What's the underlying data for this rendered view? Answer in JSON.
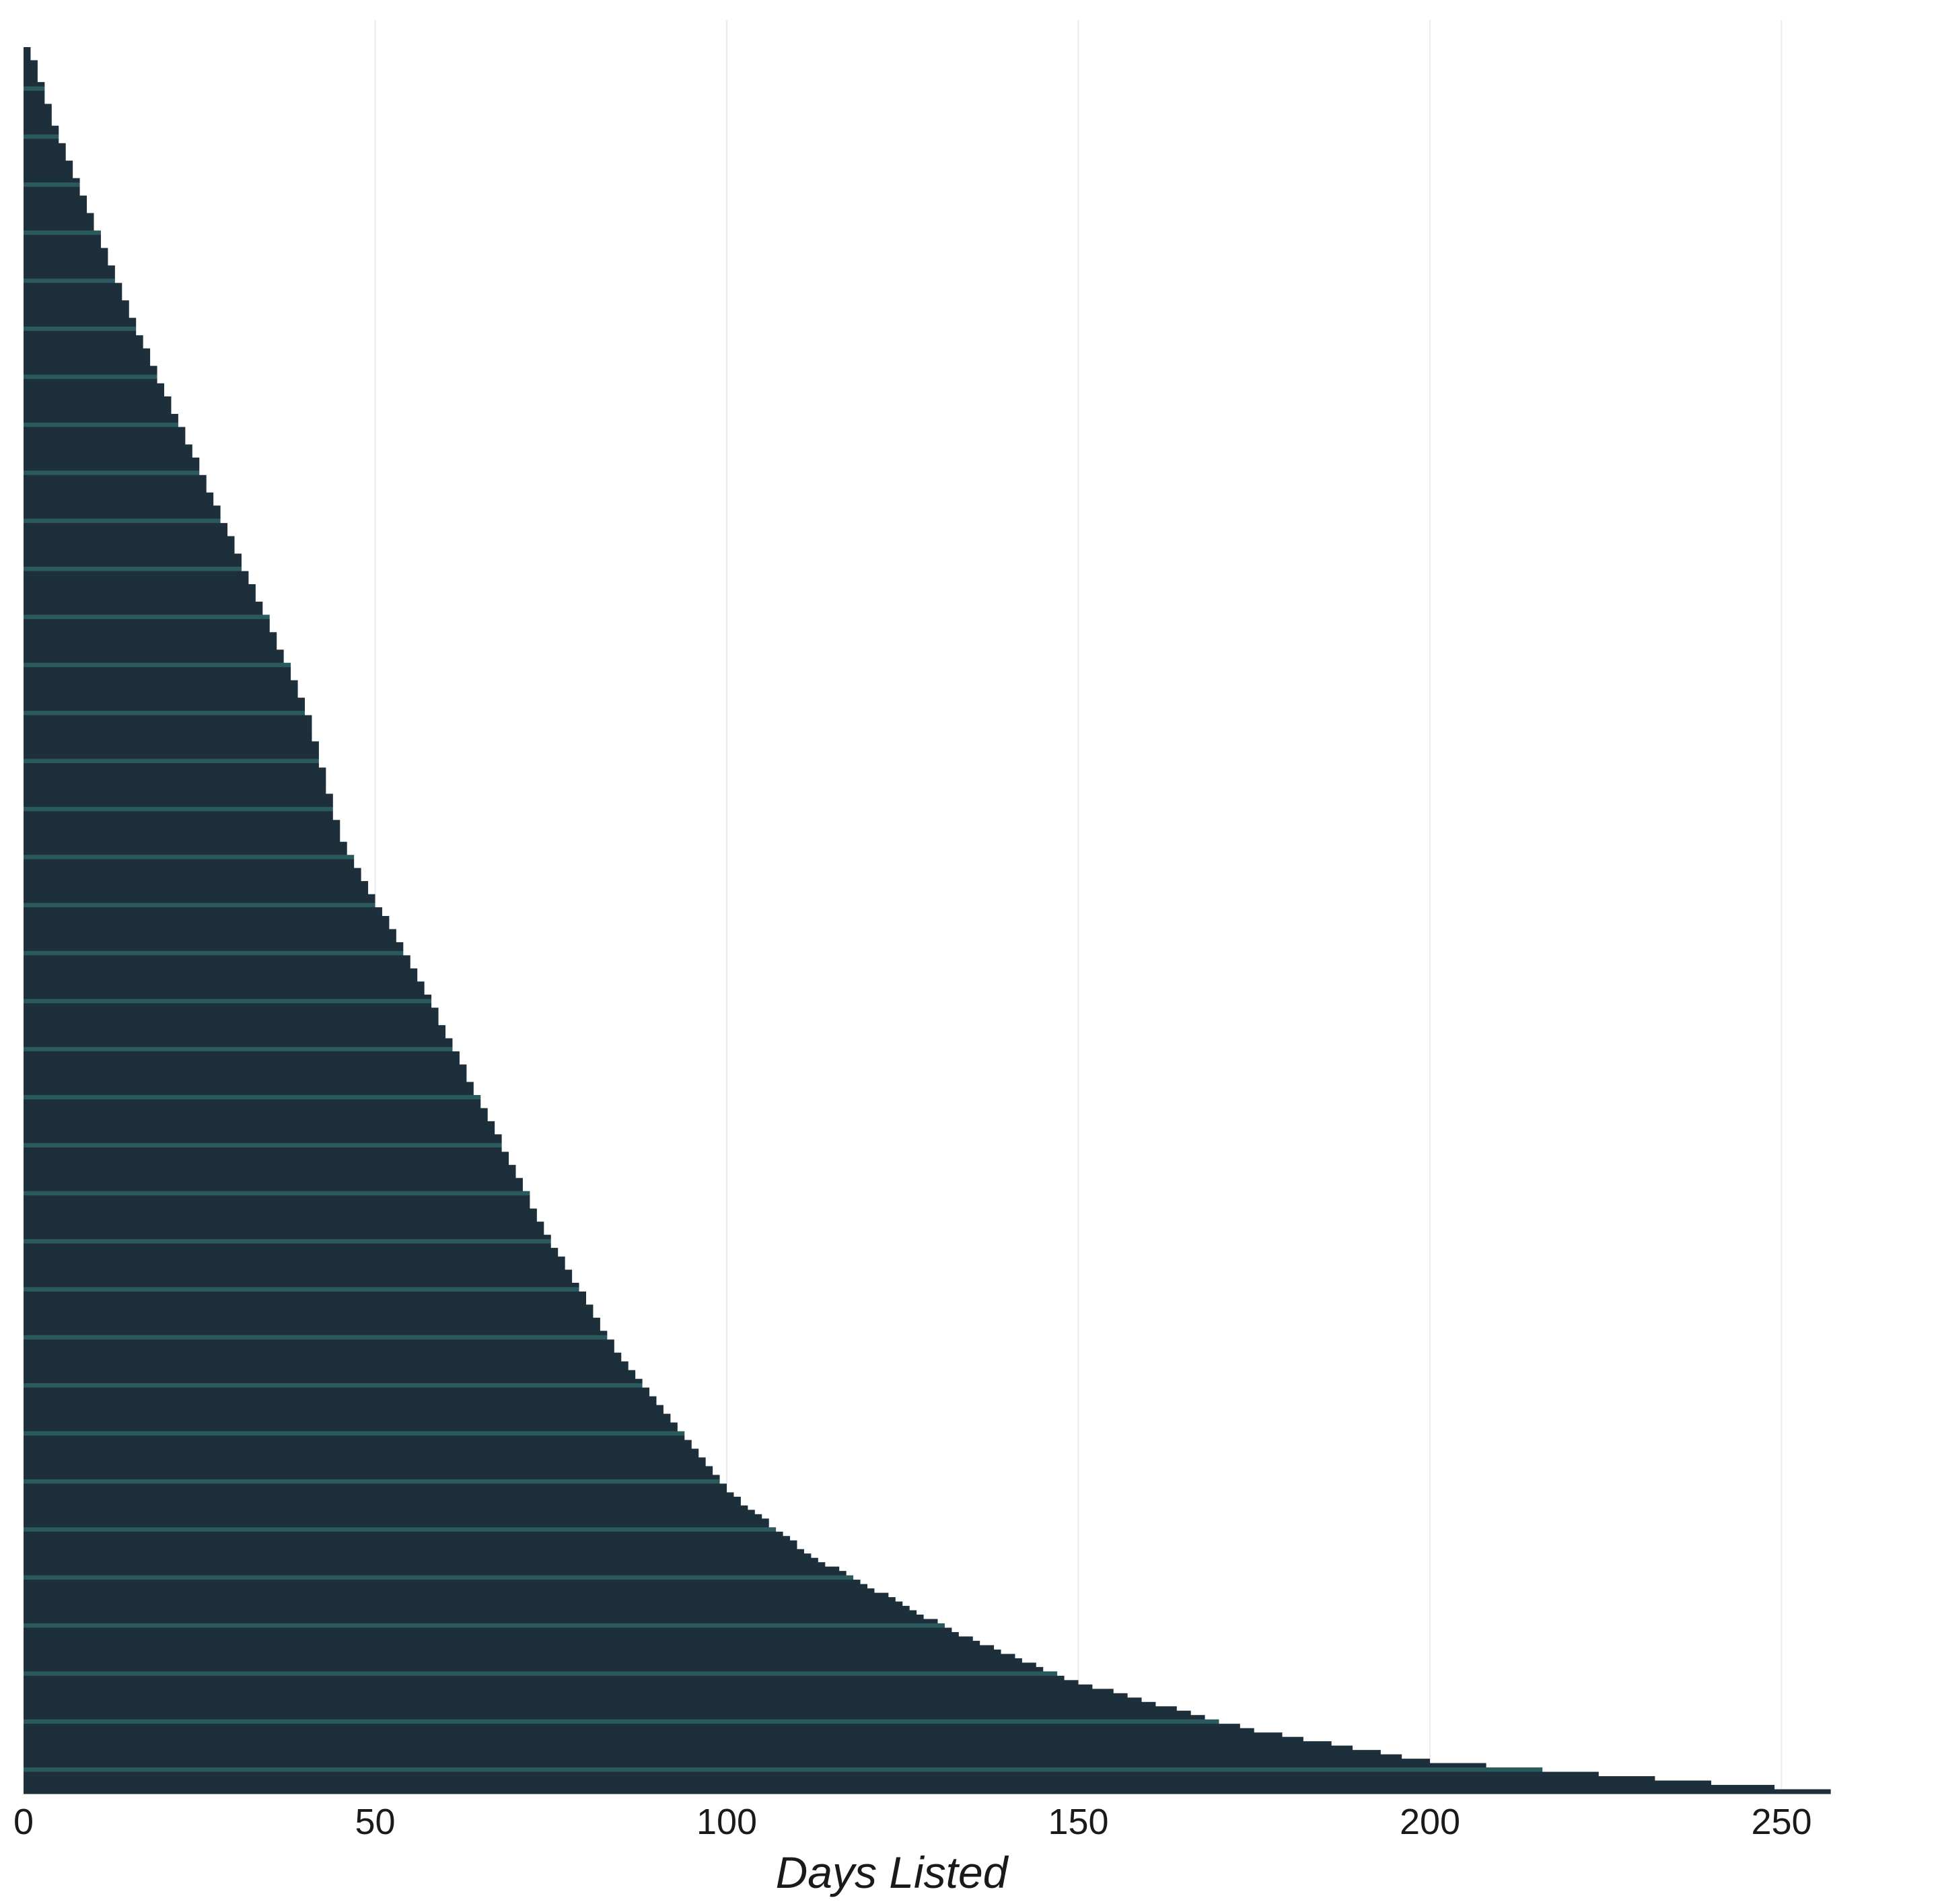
{
  "chart_data": {
    "type": "bar",
    "orientation": "horizontal",
    "xlabel": "Days Listed",
    "ylabel": "",
    "xlim": [
      0,
      258
    ],
    "x_ticks": [
      0,
      50,
      100,
      150,
      200,
      250
    ],
    "grid": true,
    "legend": "none",
    "sorted": "descending from bottom to top",
    "n_bars": 400,
    "bar_color": "#1c2f3b",
    "accent_stripe_color": "#2a5a5e",
    "anchor_points": [
      {
        "rank_from_top": 0,
        "days": 1
      },
      {
        "rank_from_top": 20,
        "days": 5
      },
      {
        "rank_from_top": 60,
        "days": 15
      },
      {
        "rank_from_top": 110,
        "days": 29
      },
      {
        "rank_from_top": 150,
        "days": 40
      },
      {
        "rank_from_top": 180,
        "days": 45
      },
      {
        "rank_from_top": 215,
        "days": 57
      },
      {
        "rank_from_top": 270,
        "days": 74
      },
      {
        "rank_from_top": 300,
        "days": 85
      },
      {
        "rank_from_top": 330,
        "days": 100
      },
      {
        "rank_from_top": 345,
        "days": 112
      },
      {
        "rank_from_top": 363,
        "days": 133
      },
      {
        "rank_from_top": 374,
        "days": 150
      },
      {
        "rank_from_top": 385,
        "days": 175
      },
      {
        "rank_from_top": 392,
        "days": 200
      },
      {
        "rank_from_top": 397,
        "days": 240
      },
      {
        "rank_from_top": 399,
        "days": 257
      }
    ]
  }
}
